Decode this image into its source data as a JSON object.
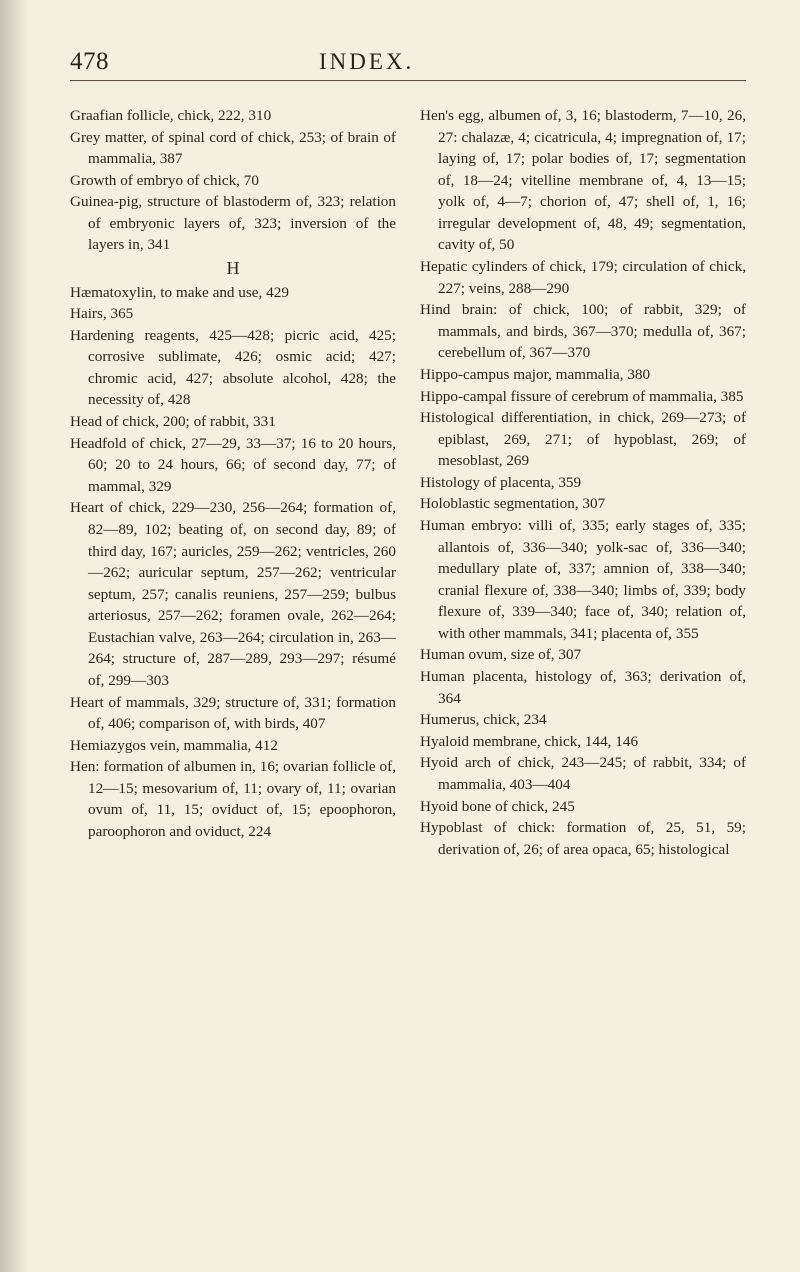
{
  "header": {
    "pageNumber": "478",
    "title": "INDEX."
  },
  "leftColumn": {
    "entries": [
      "Graafian follicle, chick, 222, 310",
      "Grey matter, of spinal cord of chick, 253; of brain of mammalia, 387",
      "Growth of embryo of chick, 70",
      "Guinea-pig, structure of blastoderm of, 323; relation of embryonic layers of, 323; inversion of the layers in, 341"
    ],
    "sectionLetter": "H",
    "entriesAfter": [
      "Hæmatoxylin, to make and use, 429",
      "Hairs, 365",
      "Hardening reagents, 425—428; picric acid, 425; corrosive sublimate, 426; osmic acid; 427; chromic acid, 427; absolute alcohol, 428; the necessity of, 428",
      "Head of chick, 200; of rabbit, 331",
      "Headfold of chick, 27—29, 33—37; 16 to 20 hours, 60; 20 to 24 hours, 66; of second day, 77; of mammal, 329",
      "Heart of chick, 229—230, 256—264; formation of, 82—89, 102; beating of, on second day, 89; of third day, 167; auricles, 259—262; ventricles, 260—262; auricular septum, 257—262; ventricular septum, 257; canalis reuniens, 257—259; bulbus arteriosus, 257—262; foramen ovale, 262—264; Eustachian valve, 263—264; circulation in, 263—264; structure of, 287—289, 293—297; résumé of, 299—303",
      "Heart of mammals, 329; structure of, 331; formation of, 406; comparison of, with birds, 407",
      "Hemiazygos vein, mammalia, 412",
      "Hen: formation of albumen in, 16; ovarian follicle of, 12—15; mesovarium of, 11; ovary of, 11; ovarian ovum of, 11, 15; oviduct of, 15; epoophoron, paroophoron and oviduct, 224"
    ]
  },
  "rightColumn": {
    "entries": [
      "Hen's egg, albumen of, 3, 16; blastoderm, 7—10, 26, 27: chalazæ, 4; cicatricula, 4; impregnation of, 17; laying of, 17; polar bodies of, 17; segmentation of, 18—24; vitelline membrane of, 4, 13—15; yolk of, 4—7; chorion of, 47; shell of, 1, 16; irregular development of, 48, 49; segmentation, cavity of, 50",
      "Hepatic cylinders of chick, 179; circulation of chick, 227; veins, 288—290",
      "Hind brain: of chick, 100; of rabbit, 329; of mammals, and birds, 367—370; medulla of, 367; cerebellum of, 367—370",
      "Hippo-campus major, mammalia, 380",
      "Hippo-campal fissure of cerebrum of mammalia, 385",
      "Histological differentiation, in chick, 269—273; of epiblast, 269, 271; of hypoblast, 269; of mesoblast, 269",
      "Histology of placenta, 359",
      "Holoblastic segmentation, 307",
      "Human embryo: villi of, 335; early stages of, 335; allantois of, 336—340; yolk-sac of, 336—340; medullary plate of, 337; amnion of, 338—340; cranial flexure of, 338—340; limbs of, 339; body flexure of, 339—340; face of, 340; relation of, with other mammals, 341; placenta of, 355",
      "Human ovum, size of, 307",
      "Human placenta, histology of, 363; derivation of, 364",
      "Humerus, chick, 234",
      "Hyaloid membrane, chick, 144, 146",
      "Hyoid arch of chick, 243—245; of rabbit, 334; of mammalia, 403—404",
      "Hyoid bone of chick, 245",
      "Hypoblast of chick: formation of, 25, 51, 59; derivation of, 26; of area opaca, 65; histological"
    ]
  }
}
